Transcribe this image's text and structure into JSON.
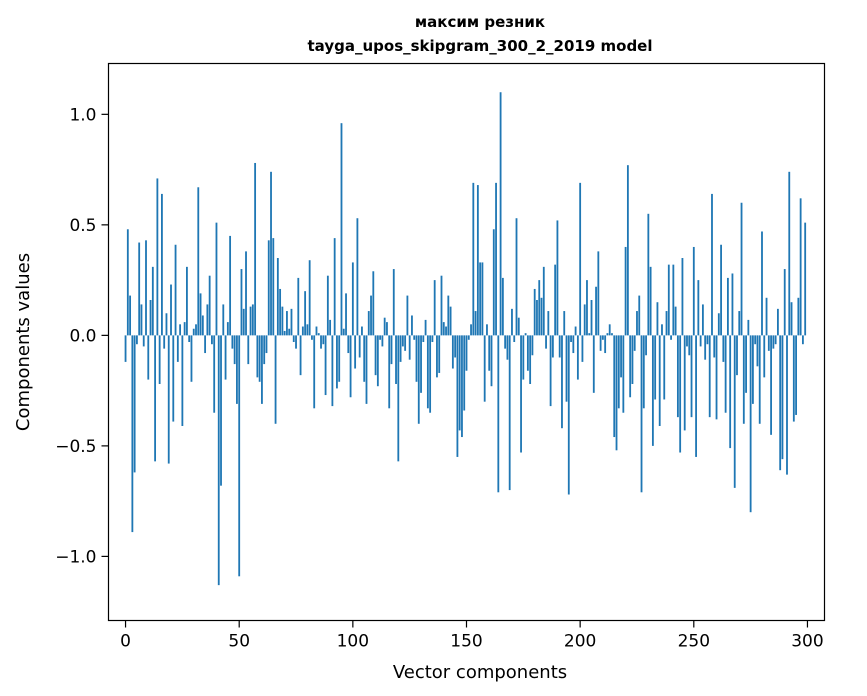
{
  "chart_data": {
    "type": "bar",
    "title": "максим резник",
    "subtitle": "tayga_upos_skipgram_300_2_2019 model",
    "xlabel": "Vector components",
    "ylabel": "Components values",
    "xlim": [
      -7.5,
      307.5
    ],
    "ylim": [
      -1.29,
      1.23
    ],
    "xticks": [
      0,
      50,
      100,
      150,
      200,
      250,
      300
    ],
    "xtick_labels": [
      "0",
      "50",
      "100",
      "150",
      "200",
      "250",
      "300"
    ],
    "yticks": [
      -1.0,
      -0.5,
      0.0,
      0.5,
      1.0
    ],
    "ytick_labels": [
      "−1.0",
      "−0.5",
      "0.0",
      "0.5",
      "1.0"
    ],
    "bar_color": "#1f77b4",
    "grid": false,
    "x": "0..299 (component index)",
    "values": [
      -0.12,
      0.48,
      0.18,
      -0.89,
      -0.62,
      -0.04,
      0.42,
      0.14,
      -0.05,
      0.43,
      -0.2,
      0.16,
      0.31,
      -0.57,
      0.71,
      -0.22,
      0.64,
      -0.06,
      0.1,
      -0.58,
      0.23,
      -0.39,
      0.41,
      -0.12,
      0.05,
      -0.41,
      0.06,
      0.31,
      -0.03,
      -0.21,
      0.03,
      0.05,
      0.67,
      0.19,
      0.09,
      -0.08,
      0.14,
      0.27,
      -0.04,
      -0.35,
      0.51,
      -1.13,
      -0.68,
      0.14,
      -0.2,
      0.06,
      0.45,
      -0.06,
      -0.13,
      -0.31,
      -1.09,
      0.3,
      0.12,
      0.38,
      -0.13,
      0.13,
      0.14,
      0.78,
      -0.19,
      -0.21,
      -0.31,
      -0.13,
      -0.08,
      0.43,
      0.74,
      0.44,
      -0.4,
      0.35,
      0.21,
      0.13,
      0.02,
      0.11,
      0.03,
      0.12,
      -0.03,
      -0.06,
      0.26,
      -0.18,
      0.04,
      0.2,
      0.05,
      0.34,
      -0.02,
      -0.33,
      0.04,
      0.01,
      -0.06,
      -0.04,
      -0.27,
      0.27,
      0.07,
      -0.32,
      0.44,
      -0.24,
      -0.21,
      0.96,
      0.03,
      0.19,
      -0.08,
      -0.28,
      0.33,
      -0.15,
      0.53,
      -0.1,
      0.04,
      -0.21,
      -0.31,
      0.11,
      0.18,
      0.29,
      -0.18,
      -0.23,
      -0.02,
      -0.05,
      0.08,
      0.06,
      -0.33,
      -0.13,
      0.3,
      -0.22,
      -0.57,
      -0.12,
      -0.05,
      -0.07,
      0.18,
      -0.11,
      0.09,
      -0.02,
      -0.21,
      -0.4,
      -0.26,
      -0.03,
      0.07,
      -0.33,
      -0.35,
      -0.03,
      0.25,
      -0.19,
      -0.17,
      0.27,
      0.06,
      0.04,
      0.18,
      0.13,
      -0.15,
      -0.1,
      -0.55,
      -0.43,
      -0.46,
      -0.34,
      -0.16,
      -0.02,
      0.05,
      0.69,
      0.11,
      0.68,
      0.33,
      0.33,
      -0.3,
      0.05,
      -0.16,
      -0.23,
      0.48,
      0.69,
      -0.71,
      1.1,
      0.26,
      -0.06,
      -0.11,
      -0.7,
      0.12,
      -0.03,
      0.53,
      0.08,
      -0.53,
      -0.2,
      0.01,
      -0.16,
      -0.22,
      -0.09,
      0.21,
      0.16,
      0.25,
      0.17,
      0.31,
      -0.06,
      0.11,
      -0.32,
      -0.1,
      0.32,
      0.52,
      -0.1,
      -0.42,
      0.11,
      -0.3,
      -0.72,
      -0.03,
      -0.08,
      0.04,
      -0.2,
      0.69,
      -0.12,
      0.14,
      0.25,
      0.01,
      0.16,
      -0.26,
      0.22,
      0.38,
      -0.07,
      -0.02,
      -0.08,
      0.01,
      0.05,
      0.01,
      -0.46,
      -0.52,
      -0.33,
      -0.19,
      -0.35,
      0.4,
      0.77,
      -0.28,
      -0.22,
      -0.07,
      0.11,
      0.18,
      -0.71,
      -0.33,
      -0.09,
      0.55,
      0.31,
      -0.5,
      -0.29,
      0.15,
      -0.41,
      0.05,
      -0.29,
      0.11,
      0.32,
      -0.02,
      0.32,
      0.13,
      -0.37,
      -0.53,
      0.35,
      -0.43,
      -0.05,
      -0.09,
      -0.37,
      0.4,
      -0.55,
      0.25,
      -0.05,
      0.14,
      -0.11,
      -0.04,
      -0.37,
      0.64,
      -0.1,
      -0.38,
      0.1,
      0.41,
      -0.12,
      -0.35,
      0.26,
      -0.51,
      0.28,
      -0.69,
      -0.18,
      0.11,
      0.6,
      -0.4,
      -0.26,
      0.07,
      -0.8,
      -0.31,
      -0.04,
      -0.14,
      -0.4,
      0.47,
      -0.19,
      0.17,
      -0.07,
      -0.45,
      -0.06,
      -0.04,
      0.12,
      -0.61,
      -0.56,
      0.3,
      -0.63,
      0.74,
      0.15,
      -0.39,
      -0.36,
      0.17,
      0.62,
      -0.04,
      0.51
    ]
  }
}
